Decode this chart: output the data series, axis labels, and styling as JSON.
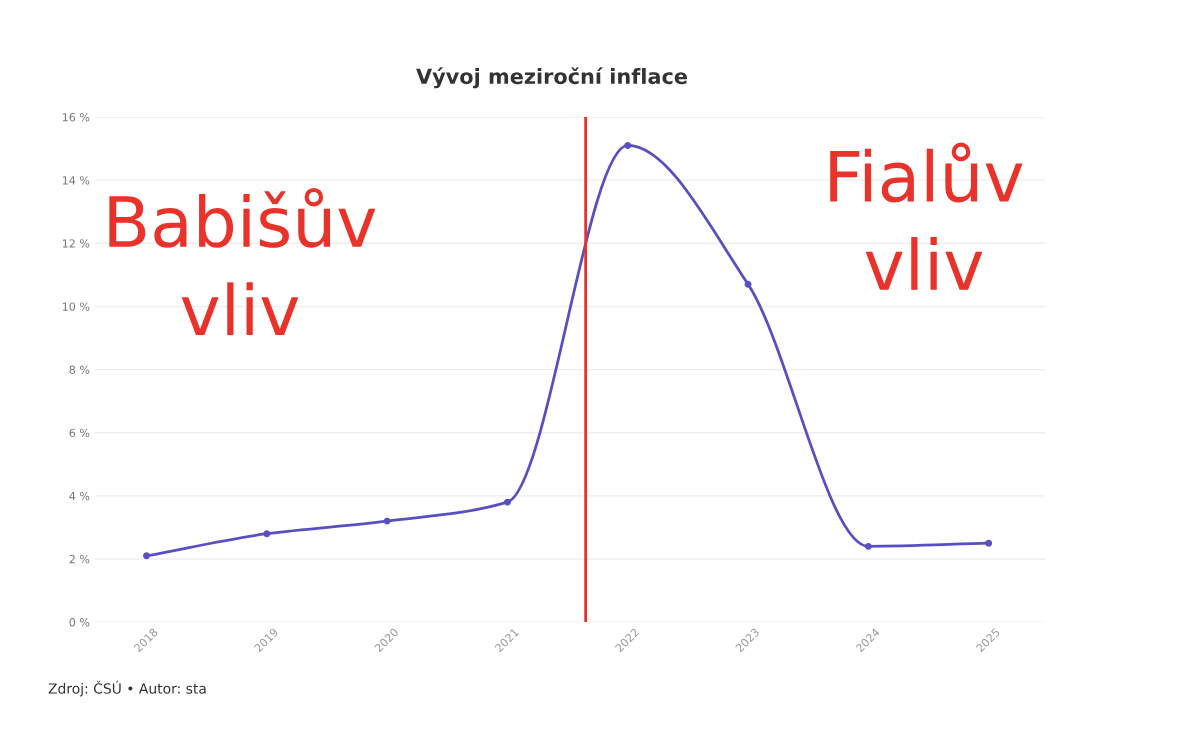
{
  "chart_data": {
    "type": "line",
    "title": "Vývoj meziroční inflace",
    "x": [
      2018,
      2019,
      2020,
      2021,
      2022,
      2023,
      2024,
      2025
    ],
    "series": [
      {
        "color": "#5a4fc2",
        "values": [
          2.1,
          2.8,
          3.2,
          3.8,
          15.1,
          10.7,
          2.4,
          2.5
        ]
      }
    ],
    "xlim": [
      2017.57,
      2025.47
    ],
    "xticks": [
      2018,
      2019,
      2020,
      2021,
      2022,
      2023,
      2024,
      2025
    ],
    "ylim": [
      0,
      16
    ],
    "yticks": [
      {
        "value": 0,
        "label": "0 %"
      },
      {
        "value": 2,
        "label": "2 %"
      },
      {
        "value": 4,
        "label": "4 %"
      },
      {
        "value": 6,
        "label": "6 %"
      },
      {
        "value": 8,
        "label": "8 %"
      },
      {
        "value": 10,
        "label": "10 %"
      },
      {
        "value": 12,
        "label": "12 %"
      },
      {
        "value": 14,
        "label": "14 %"
      },
      {
        "value": 16,
        "label": "16 %"
      }
    ],
    "grid": "y",
    "marker": "circle",
    "line_style": "solid",
    "ref_lines": [
      {
        "axis": "x",
        "value": 2021.65,
        "color": "#e8322a"
      }
    ],
    "annotations": [
      "Babišův\nvliv",
      "Fialův\nvliv",
      "Zdroj: ČSÚ • Autor: sta"
    ]
  }
}
